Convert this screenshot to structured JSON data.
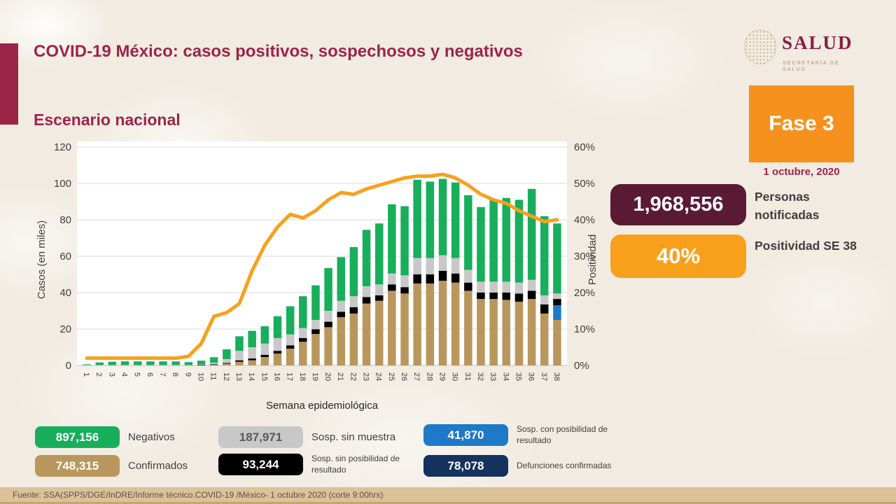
{
  "header": {
    "title": "COVID-19 México: casos positivos, sospechosos y negativos",
    "subtitle": "Escenario nacional",
    "logo": {
      "wordmark": "SALUD",
      "subtext": "SECRETARÍA DE SALUD"
    }
  },
  "phase": {
    "label": "Fase 3",
    "date": "1 octubre, 2020",
    "color": "#F6911E"
  },
  "stats": [
    {
      "value": "1,968,556",
      "label": "Personas notificadas",
      "color": "#5A1A33",
      "value_color": "#FFFFFF"
    },
    {
      "value": "40%",
      "label": "Positividad SE 38",
      "color": "#F8A01C",
      "value_color": "#FFFFFF"
    }
  ],
  "chart_data": {
    "type": "bar",
    "subtype": "stacked-bars-with-line",
    "title": "Escenario nacional",
    "xlabel": "Semana epidemiológica",
    "ylabel_left": "Casos (en miles)",
    "ylabel_right": "Positividad",
    "ylim_left": [
      0,
      120
    ],
    "ylim_right_percent": [
      0,
      60
    ],
    "yticks_left": [
      0,
      20,
      40,
      60,
      80,
      100,
      120
    ],
    "yticks_right": [
      "0%",
      "10%",
      "20%",
      "30%",
      "40%",
      "50%",
      "60%"
    ],
    "grid": true,
    "categories": [
      "1",
      "2",
      "3",
      "4",
      "5",
      "6",
      "7",
      "8",
      "9",
      "10",
      "11",
      "12",
      "13",
      "14",
      "15",
      "16",
      "17",
      "18",
      "19",
      "20",
      "21",
      "22",
      "23",
      "24",
      "25",
      "26",
      "27",
      "28",
      "29",
      "30",
      "31",
      "32",
      "33",
      "34",
      "35",
      "36",
      "37",
      "38"
    ],
    "series": [
      {
        "name": "Confirmados",
        "color": "#B9975C",
        "values": [
          0.1,
          0.1,
          0.1,
          0.1,
          0.1,
          0.1,
          0.1,
          0.1,
          0.1,
          0.2,
          0.4,
          1.0,
          2.0,
          2.8,
          4.6,
          6.5,
          9.2,
          13.0,
          17.3,
          21.0,
          26.5,
          28.5,
          34.0,
          35.5,
          41.0,
          39.5,
          45.0,
          45.0,
          46.5,
          45.5,
          41.0,
          36.5,
          36.5,
          36.0,
          35.0,
          36.5,
          28.5,
          25.0
        ]
      },
      {
        "name": "Sosp. con posibilidad de resultado",
        "color": "#1E79C8",
        "values": [
          0,
          0,
          0,
          0,
          0,
          0,
          0,
          0,
          0,
          0,
          0,
          0,
          0,
          0,
          0,
          0,
          0,
          0,
          0,
          0,
          0,
          0,
          0,
          0,
          0,
          0,
          0,
          0,
          0,
          0,
          0,
          0,
          0,
          0,
          0,
          0,
          0,
          8.0
        ]
      },
      {
        "name": "Sosp. sin posibilidad de resultado",
        "color": "#000000",
        "values": [
          0,
          0,
          0,
          0,
          0,
          0,
          0,
          0,
          0,
          0.1,
          0.2,
          0.4,
          0.8,
          1.0,
          1.2,
          1.5,
          1.8,
          2.0,
          2.5,
          3.0,
          3.0,
          3.5,
          3.5,
          3.0,
          3.5,
          3.5,
          5.0,
          5.0,
          5.5,
          5.0,
          4.5,
          3.5,
          3.5,
          4.0,
          4.5,
          4.5,
          5.0,
          3.5
        ]
      },
      {
        "name": "Sosp. sin muestra",
        "color": "#C8C8C8",
        "values": [
          0.1,
          0.1,
          0.1,
          0.1,
          0.1,
          0.1,
          0.1,
          0.1,
          0.1,
          0.3,
          0.9,
          2.0,
          5.2,
          6.2,
          6.2,
          7.0,
          6.0,
          5.5,
          5.2,
          6.0,
          6.0,
          6.0,
          6.0,
          6.0,
          6.0,
          6.5,
          9.0,
          9.0,
          8.5,
          8.5,
          7.0,
          6.0,
          6.0,
          6.0,
          6.0,
          6.0,
          5.0,
          3.0
        ]
      },
      {
        "name": "Negativos",
        "color": "#18AE5C",
        "values": [
          0.4,
          1.4,
          1.8,
          2.0,
          2.0,
          2.0,
          2.0,
          2.0,
          1.6,
          2.0,
          3.0,
          5.4,
          8.0,
          9.0,
          9.5,
          12.0,
          15.5,
          17.5,
          19.0,
          23.5,
          24.0,
          27.0,
          31.0,
          33.5,
          38.0,
          38.0,
          43.0,
          42.0,
          42.0,
          41.5,
          41.0,
          41.0,
          45.0,
          46.0,
          45.5,
          50.0,
          43.5,
          38.5
        ]
      }
    ],
    "line": {
      "name": "Positividad",
      "color": "#F8A01C",
      "units": "percent",
      "values": [
        2,
        2,
        2,
        2,
        2,
        2,
        2,
        2,
        2.5,
        6,
        13.5,
        14.5,
        17,
        26,
        33,
        38,
        41.5,
        40.5,
        42.5,
        45.5,
        47.5,
        47,
        48.5,
        49.5,
        50.5,
        51.5,
        52,
        52,
        52.5,
        51.5,
        49.5,
        47,
        45.5,
        44.5,
        42.5,
        41,
        39.5,
        40
      ]
    }
  },
  "legend": {
    "items": [
      {
        "value": "897,156",
        "label": "Negativos",
        "color": "#18AE5C",
        "value_color": "#FFFFFF"
      },
      {
        "value": "187,971",
        "label": "Sosp. sin muestra",
        "color": "#C8C8C8",
        "value_color": "#595959"
      },
      {
        "value": "41,870",
        "label": "Sosp. con posibilidad de resultado",
        "color": "#1E79C8",
        "value_color": "#FFFFFF"
      },
      {
        "value": "748,315",
        "label": "Confirmados",
        "color": "#B9975C",
        "value_color": "#FFFFFF"
      },
      {
        "value": "93,244",
        "label": "Sosp. sin posibilidad de resultado",
        "color": "#000000",
        "value_color": "#FFFFFF"
      },
      {
        "value": "78,078",
        "label": "Defunciones confirmadas",
        "color": "#13325E",
        "value_color": "#FFFFFF"
      }
    ]
  },
  "footer": {
    "source": "Fuente: SSA(SPPS/DGE/InDRE/Informe técnico.COVID-19 /México- 1 octubre 2020 (corte 9:00hrs)"
  }
}
